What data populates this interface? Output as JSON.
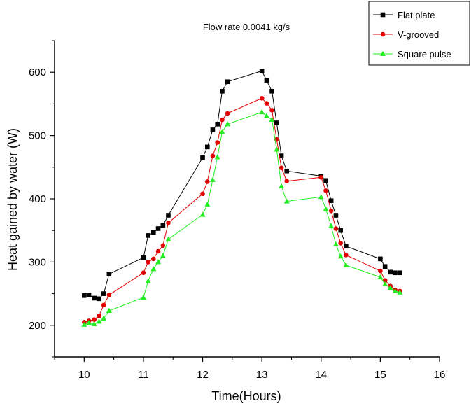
{
  "chart_data": {
    "type": "line",
    "title": "Flow rate 0.0041 kg/s",
    "xlabel": "Time(Hours)",
    "ylabel": "Heat gained by water (W)",
    "xlim": [
      9.5,
      16
    ],
    "ylim": [
      150,
      650
    ],
    "xticks": [
      10,
      11,
      12,
      13,
      14,
      15,
      16
    ],
    "yticks": [
      200,
      300,
      400,
      500,
      600
    ],
    "legend_position": "top-right",
    "series": [
      {
        "name": "Flat plate",
        "color": "#000000",
        "marker": "square",
        "x": [
          10.0,
          10.08,
          10.17,
          10.25,
          10.33,
          10.42,
          11.0,
          11.08,
          11.17,
          11.25,
          11.33,
          11.42,
          12.0,
          12.08,
          12.17,
          12.25,
          12.33,
          12.42,
          13.0,
          13.08,
          13.17,
          13.25,
          13.33,
          13.42,
          14.0,
          14.08,
          14.17,
          14.25,
          14.33,
          14.42,
          15.0,
          15.08,
          15.17,
          15.25,
          15.33
        ],
        "y": [
          247,
          248,
          243,
          242,
          250,
          281,
          307,
          342,
          347,
          353,
          358,
          374,
          465,
          482,
          509,
          518,
          570,
          585,
          602,
          587,
          570,
          520,
          468,
          444,
          436,
          429,
          397,
          374,
          350,
          325,
          305,
          293,
          284,
          283,
          283
        ]
      },
      {
        "name": "V-grooved",
        "color": "#e00000",
        "marker": "circle",
        "x": [
          10.0,
          10.08,
          10.17,
          10.25,
          10.33,
          10.42,
          11.0,
          11.08,
          11.17,
          11.25,
          11.33,
          11.42,
          12.0,
          12.08,
          12.17,
          12.25,
          12.33,
          12.42,
          13.0,
          13.08,
          13.17,
          13.25,
          13.33,
          13.42,
          14.0,
          14.08,
          14.17,
          14.25,
          14.33,
          14.42,
          15.0,
          15.08,
          15.17,
          15.25,
          15.33
        ],
        "y": [
          205,
          207,
          209,
          215,
          232,
          248,
          283,
          300,
          305,
          317,
          326,
          362,
          408,
          427,
          468,
          489,
          525,
          535,
          559,
          551,
          540,
          494,
          449,
          428,
          434,
          413,
          381,
          353,
          330,
          311,
          286,
          271,
          262,
          256,
          254
        ]
      },
      {
        "name": "Square pulse",
        "color": "#22ee22",
        "marker": "triangle",
        "x": [
          10.0,
          10.08,
          10.17,
          10.25,
          10.33,
          10.42,
          11.0,
          11.08,
          11.17,
          11.25,
          11.33,
          11.42,
          12.0,
          12.08,
          12.17,
          12.25,
          12.33,
          12.42,
          13.0,
          13.08,
          13.17,
          13.25,
          13.33,
          13.42,
          14.0,
          14.08,
          14.17,
          14.25,
          14.33,
          14.42,
          15.0,
          15.08,
          15.17,
          15.25,
          15.33
        ],
        "y": [
          201,
          204,
          202,
          206,
          211,
          223,
          244,
          270,
          289,
          300,
          310,
          336,
          375,
          391,
          430,
          466,
          506,
          518,
          537,
          531,
          525,
          478,
          420,
          396,
          403,
          384,
          357,
          328,
          309,
          295,
          276,
          265,
          259,
          254,
          252
        ]
      }
    ]
  }
}
